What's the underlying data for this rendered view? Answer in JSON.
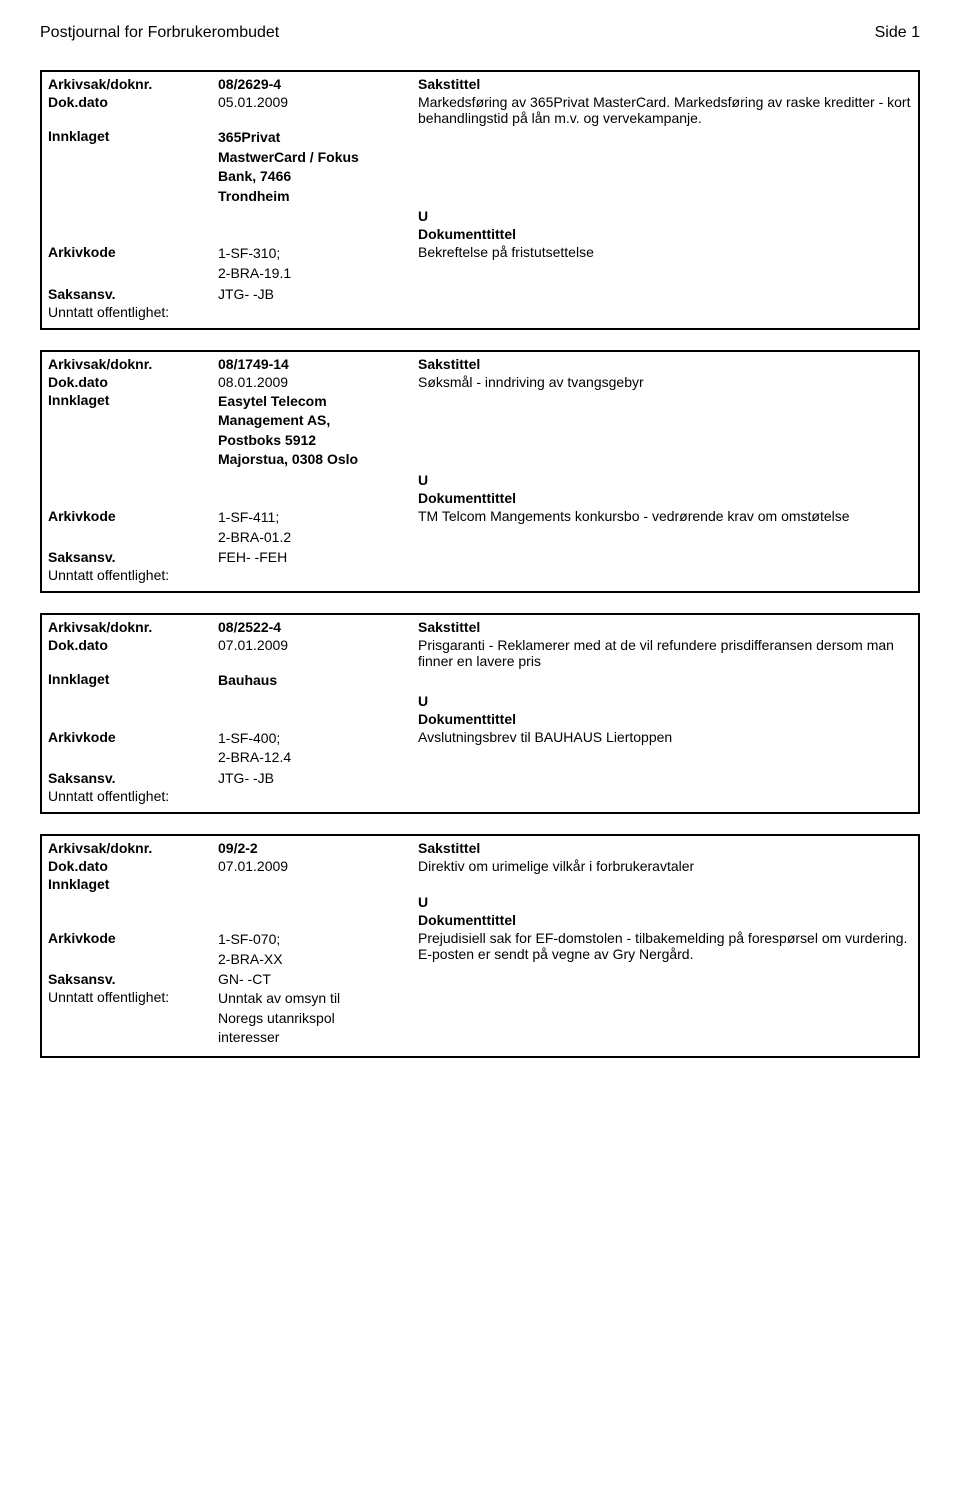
{
  "header": {
    "journalTitle": "Postjournal for Forbrukerombudet",
    "pageLabel": "Side 1"
  },
  "labels": {
    "arkivsakDoknr": "Arkivsak/doknr.",
    "dokDato": "Dok.dato",
    "innklaget": "Innklaget",
    "arkivkode": "Arkivkode",
    "saksansv": "Saksansv.",
    "unntatt": "Unntatt offentlighet:",
    "sakstittel": "Sakstittel",
    "dokumenttittel": "Dokumenttittel",
    "u": "U"
  },
  "cards": [
    {
      "doknr": "08/2629-4",
      "dokdato": "05.01.2009",
      "sakstittel": "Markedsføring av 365Privat MasterCard. Markedsføring av raske kreditter - kort behandlingstid på lån m.v. og vervekampanje.",
      "innklaget": "365Privat\nMastwerCard / Fokus\nBank, 7466\nTrondheim",
      "arkivkode": "1-SF-310;\n2-BRA-19.1",
      "dokumenttittel": "Bekreftelse på fristutsettelse",
      "saksansv": "JTG- -JB",
      "unntatt": ""
    },
    {
      "doknr": "08/1749-14",
      "dokdato": "08.01.2009",
      "sakstittel": "Søksmål -  inndriving av tvangsgebyr",
      "innklaget": "Easytel Telecom\nManagement AS,\nPostboks 5912\nMajorstua, 0308 Oslo",
      "arkivkode": "1-SF-411;\n2-BRA-01.2",
      "dokumenttittel": "TM Telcom Mangements konkursbo - vedrørende krav om omstøtelse",
      "saksansv": "FEH- -FEH",
      "unntatt": ""
    },
    {
      "doknr": "08/2522-4",
      "dokdato": "07.01.2009",
      "sakstittel": "Prisgaranti - Reklamerer med at de vil refundere prisdifferansen dersom man finner en lavere pris",
      "innklaget": "Bauhaus",
      "arkivkode": "1-SF-400;\n2-BRA-12.4",
      "dokumenttittel": "Avslutningsbrev til BAUHAUS Liertoppen",
      "saksansv": "JTG- -JB",
      "unntatt": ""
    },
    {
      "doknr": "09/2-2",
      "dokdato": "07.01.2009",
      "sakstittel": "Direktiv om urimelige vilkår i forbrukeravtaler",
      "innklaget": "",
      "arkivkode": "1-SF-070;\n2-BRA-XX",
      "dokumenttittel": "Prejudisiell sak for EF-domstolen - tilbakemelding på forespørsel om vurdering. E-posten er sendt på vegne av Gry Nergård.",
      "saksansv": "GN- -CT",
      "unntatt": "Unntak av omsyn til\nNoregs utanrikspol\ninteresser"
    }
  ]
}
